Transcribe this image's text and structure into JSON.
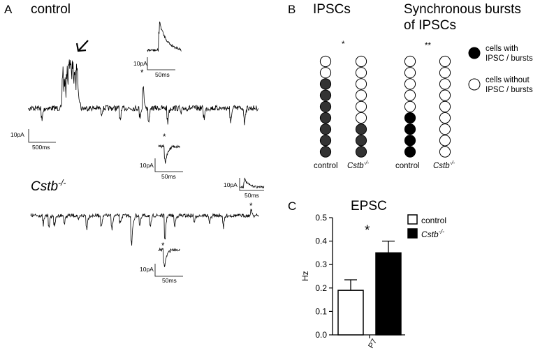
{
  "panel_a": {
    "letter": "A",
    "control_label": "control",
    "cstb_label": "Cstb",
    "cstb_sup": "-/-",
    "star": "*",
    "scale_main": {
      "amp": "10pA",
      "time": "500ms"
    },
    "scale_inset": {
      "amp": "10pA",
      "time": "50ms"
    }
  },
  "panel_b": {
    "letter": "B",
    "title_ipsc": "IPSCs",
    "title_bursts_line1": "Synchronous bursts",
    "title_bursts_line2": "of IPSCs",
    "sig_ipsc": "*",
    "sig_bursts": "**",
    "columns": [
      {
        "label": "control",
        "italic": false,
        "filled": [
          false,
          false,
          true,
          true,
          true,
          true,
          true,
          true,
          true
        ],
        "fill_color": "#333333"
      },
      {
        "label": "Cstb",
        "sup": "-/-",
        "italic": true,
        "filled": [
          false,
          false,
          false,
          false,
          false,
          false,
          true,
          true,
          true
        ],
        "fill_color": "#333333"
      },
      {
        "label": "control",
        "italic": false,
        "filled": [
          false,
          false,
          false,
          false,
          false,
          true,
          true,
          true,
          true
        ],
        "fill_color": "#000000"
      },
      {
        "label": "Cstb",
        "sup": "-/-",
        "italic": true,
        "filled": [
          false,
          false,
          false,
          false,
          false,
          false,
          false,
          false,
          false
        ],
        "fill_color": "#000000"
      }
    ],
    "legend": [
      {
        "line1": "cells with",
        "line2": "IPSC / bursts",
        "filled": true
      },
      {
        "line1": "cells without",
        "line2": "IPSC / bursts",
        "filled": false
      }
    ]
  },
  "panel_c": {
    "letter": "C",
    "chart_data": {
      "type": "bar",
      "title": "EPSC",
      "ylabel": "Hz",
      "categories": [
        "P7"
      ],
      "ylim": [
        0,
        0.5
      ],
      "yticks": [
        "0.0",
        "0.1",
        "0.2",
        "0.3",
        "0.4",
        "0.5"
      ],
      "series": [
        {
          "name": "control",
          "values": [
            0.19
          ],
          "errors": [
            0.045
          ],
          "color": "#ffffff"
        },
        {
          "name": "Cstb",
          "sup": "-/-",
          "italic": true,
          "values": [
            0.35
          ],
          "errors": [
            0.05
          ],
          "color": "#000000"
        }
      ],
      "annotation": "*",
      "legend_position": "top-right"
    }
  }
}
